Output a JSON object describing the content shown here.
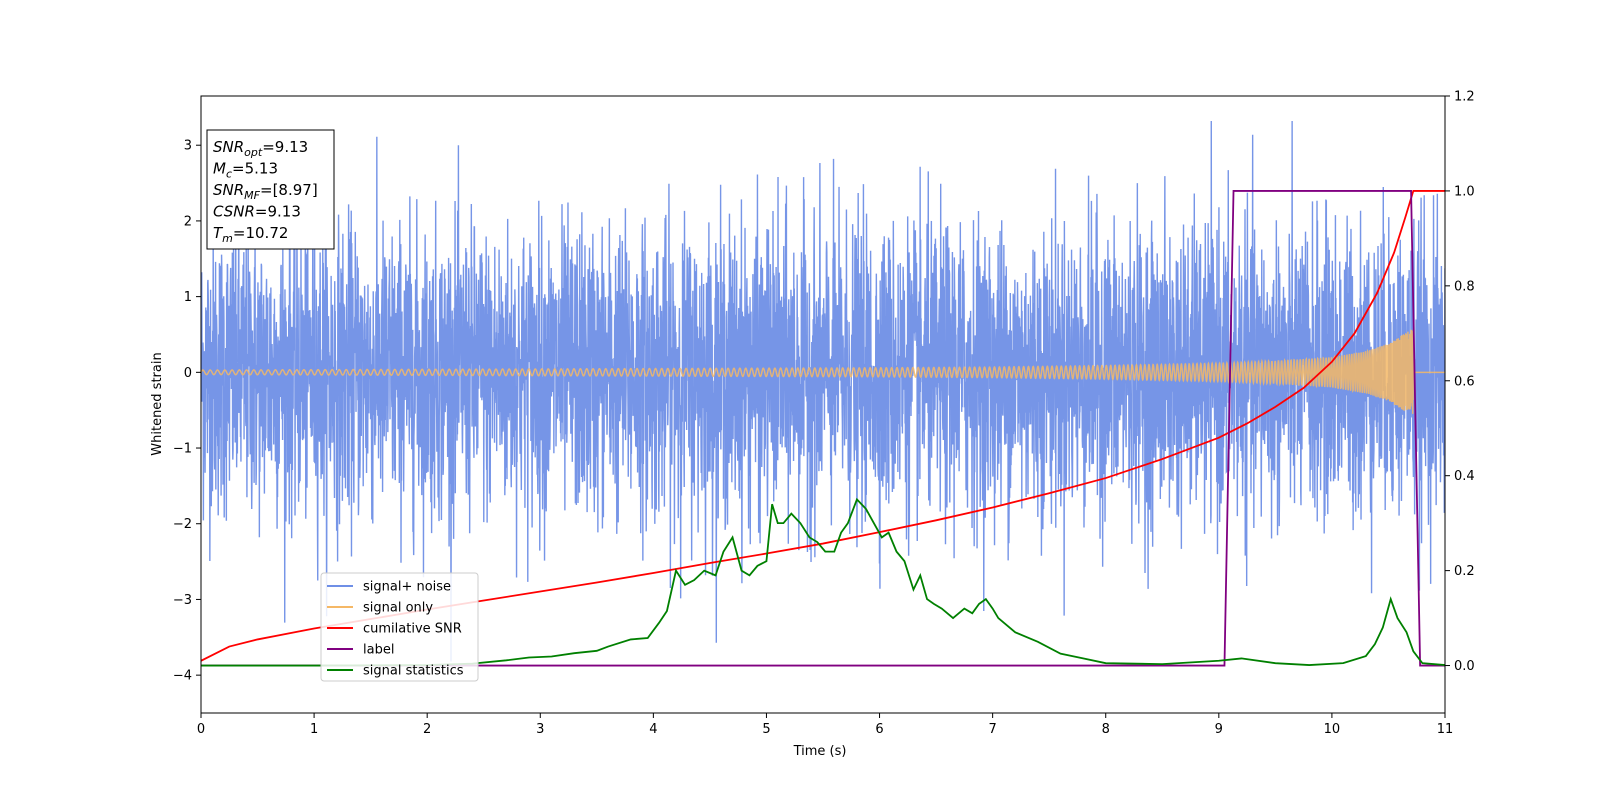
{
  "chart_data": {
    "type": "line",
    "title": "",
    "xlabel": "Time (s)",
    "ylabel": "Whitened strain",
    "y2label": "",
    "xlim": [
      0,
      11
    ],
    "ylim": [
      -4.5,
      3.65
    ],
    "y2lim": [
      -0.1,
      1.2
    ],
    "x_ticks": [
      0,
      1,
      2,
      3,
      4,
      5,
      6,
      7,
      8,
      9,
      10,
      11
    ],
    "y_ticks": [
      -4,
      -3,
      -2,
      -1,
      0,
      1,
      2,
      3
    ],
    "y2_ticks": [
      0.0,
      0.2,
      0.4,
      0.6,
      0.8,
      1.0,
      1.2
    ],
    "grid": false,
    "legend_position": "lower-left",
    "info_box": {
      "lines": [
        {
          "sym": "SNR",
          "sub": "opt",
          "value": "=9.13"
        },
        {
          "sym": "M",
          "sub": "c",
          "value": "=5.13"
        },
        {
          "sym": "SNR",
          "sub": "MF",
          "value": "=[8.97]"
        },
        {
          "sym": "CSNR",
          "sub": "",
          "value": "=9.13"
        },
        {
          "sym": "T",
          "sub": "m",
          "value": "=10.72"
        }
      ]
    },
    "series": [
      {
        "name": "signal+ noise",
        "color": "#6f8fe6",
        "axis": "left",
        "style": "noise",
        "duration": [
          0,
          11
        ],
        "typical_range": [
          -2.2,
          2.2
        ],
        "extreme_range": [
          -4.18,
          3.32
        ]
      },
      {
        "name": "signal only",
        "color": "#f5b866",
        "axis": "left",
        "style": "chirp",
        "merger_time": 10.72,
        "envelope": {
          "x": [
            0,
            2,
            4,
            6,
            7,
            8,
            9,
            9.5,
            10,
            10.3,
            10.5,
            10.65,
            10.72
          ],
          "amp": [
            0.03,
            0.04,
            0.05,
            0.06,
            0.07,
            0.09,
            0.12,
            0.15,
            0.2,
            0.28,
            0.38,
            0.52,
            0.58
          ]
        }
      },
      {
        "name": "cumilative SNR",
        "color": "#ff0000",
        "axis": "right",
        "x": [
          0,
          0.25,
          0.5,
          1,
          1.5,
          2,
          2.5,
          3,
          3.5,
          4,
          4.5,
          5,
          5.5,
          6,
          6.5,
          7,
          7.5,
          8,
          8.5,
          9,
          9.25,
          9.5,
          9.75,
          10,
          10.2,
          10.4,
          10.55,
          10.65,
          10.72,
          11
        ],
        "values": [
          0.01,
          0.04,
          0.055,
          0.078,
          0.098,
          0.118,
          0.137,
          0.156,
          0.175,
          0.195,
          0.216,
          0.236,
          0.257,
          0.281,
          0.306,
          0.333,
          0.363,
          0.395,
          0.435,
          0.48,
          0.51,
          0.545,
          0.585,
          0.64,
          0.7,
          0.785,
          0.87,
          0.945,
          1.0,
          1.0
        ]
      },
      {
        "name": "label",
        "color": "#800080",
        "axis": "right",
        "x": [
          0,
          9.05,
          9.13,
          10.7,
          10.78,
          11
        ],
        "values": [
          0,
          0,
          1,
          1,
          0,
          0
        ]
      },
      {
        "name": "signal statistics",
        "color": "#008000",
        "axis": "right",
        "x": [
          0,
          1,
          2,
          2.4,
          2.7,
          2.9,
          3.1,
          3.3,
          3.5,
          3.6,
          3.8,
          3.95,
          4.05,
          4.12,
          4.2,
          4.28,
          4.36,
          4.45,
          4.55,
          4.62,
          4.7,
          4.78,
          4.85,
          4.92,
          5.0,
          5.05,
          5.1,
          5.15,
          5.22,
          5.3,
          5.38,
          5.45,
          5.52,
          5.6,
          5.66,
          5.72,
          5.8,
          5.88,
          5.95,
          6.02,
          6.08,
          6.15,
          6.22,
          6.3,
          6.36,
          6.42,
          6.48,
          6.55,
          6.65,
          6.75,
          6.82,
          6.88,
          6.94,
          7.0,
          7.05,
          7.2,
          7.4,
          7.6,
          7.8,
          8.0,
          8.5,
          9.0,
          9.2,
          9.5,
          9.8,
          10.1,
          10.3,
          10.38,
          10.45,
          10.52,
          10.58,
          10.66,
          10.72,
          10.8,
          11
        ],
        "values": [
          0,
          0,
          0.001,
          0.004,
          0.011,
          0.017,
          0.019,
          0.026,
          0.031,
          0.04,
          0.055,
          0.058,
          0.09,
          0.115,
          0.2,
          0.17,
          0.18,
          0.2,
          0.19,
          0.24,
          0.27,
          0.2,
          0.19,
          0.21,
          0.22,
          0.34,
          0.3,
          0.3,
          0.32,
          0.3,
          0.27,
          0.26,
          0.24,
          0.24,
          0.28,
          0.3,
          0.35,
          0.33,
          0.3,
          0.27,
          0.28,
          0.24,
          0.22,
          0.16,
          0.19,
          0.14,
          0.13,
          0.12,
          0.1,
          0.12,
          0.11,
          0.13,
          0.14,
          0.12,
          0.1,
          0.07,
          0.05,
          0.025,
          0.015,
          0.005,
          0.003,
          0.01,
          0.015,
          0.005,
          0.001,
          0.005,
          0.02,
          0.045,
          0.08,
          0.14,
          0.1,
          0.07,
          0.03,
          0.005,
          0.001
        ]
      }
    ]
  }
}
